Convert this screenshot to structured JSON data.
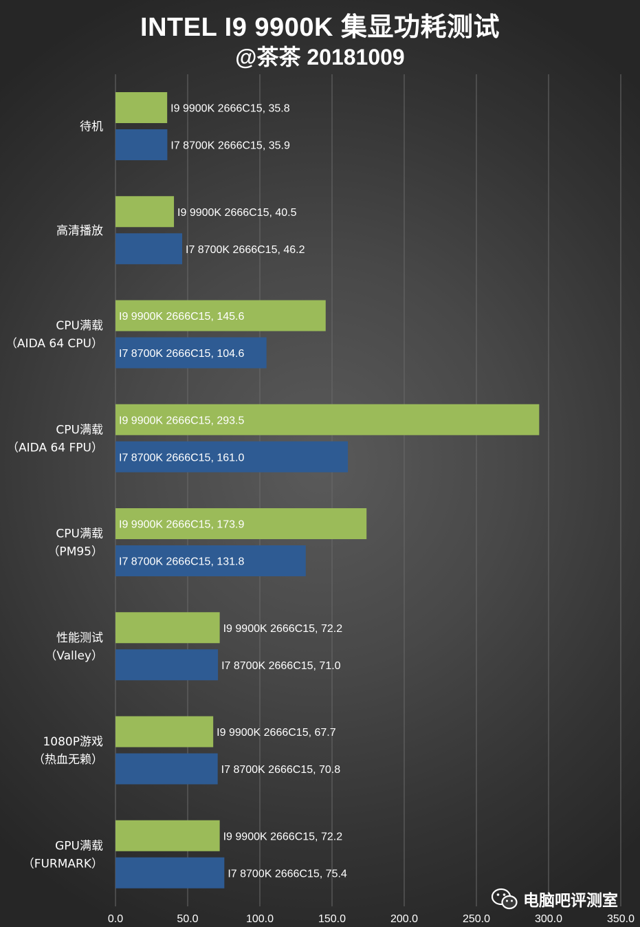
{
  "chart_data": {
    "type": "bar",
    "orientation": "horizontal",
    "title": "INTEL I9 9900K 集显功耗测试",
    "subtitle": "@茶茶 20181009",
    "categories": [
      "待机",
      "高清播放",
      "CPU满载\n（AIDA 64 CPU）",
      "CPU满载\n（AIDA 64 FPU）",
      "CPU满载\n（PM95）",
      "性能测试\n（Valley）",
      "1080P游戏\n（热血无赖）",
      "GPU满载\n（FURMARK）"
    ],
    "series": [
      {
        "name": "I9 9900K 2666C15",
        "color": "#9bbb59",
        "values": [
          35.8,
          40.5,
          145.6,
          293.5,
          173.9,
          72.2,
          67.7,
          72.2
        ]
      },
      {
        "name": "I7 8700K 2666C15",
        "color": "#2e5b93",
        "values": [
          35.9,
          46.2,
          104.6,
          161.0,
          131.8,
          71.0,
          70.8,
          75.4
        ]
      }
    ],
    "xlim": [
      0,
      350
    ],
    "xticks": [
      "0.0",
      "50.0",
      "100.0",
      "150.0",
      "200.0",
      "250.0",
      "300.0",
      "350.0"
    ],
    "grid": true,
    "legend": "none"
  },
  "watermark": {
    "icon": "wechat-icon",
    "text": "电脑吧评测室"
  }
}
